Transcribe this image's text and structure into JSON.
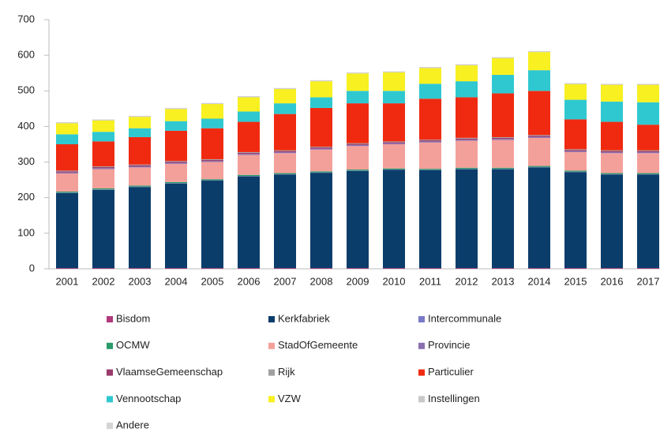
{
  "chart_data": {
    "type": "stacked_bar",
    "categories": [
      "2001",
      "2002",
      "2003",
      "2004",
      "2005",
      "2006",
      "2007",
      "2008",
      "2009",
      "2010",
      "2011",
      "2012",
      "2013",
      "2014",
      "2015",
      "2016",
      "2017"
    ],
    "ylim": [
      0,
      700
    ],
    "yticks": [
      0,
      100,
      200,
      300,
      400,
      500,
      600,
      700
    ],
    "grid": false,
    "series": [
      {
        "name": "Bisdom",
        "color": "#b03a7a",
        "values": [
          2,
          2,
          2,
          2,
          2,
          2,
          2,
          2,
          2,
          2,
          2,
          2,
          2,
          2,
          2,
          2,
          2
        ]
      },
      {
        "name": "Kerkfabriek",
        "color": "#0b3d6b",
        "values": [
          211,
          220,
          228,
          238,
          246,
          258,
          263,
          268,
          273,
          276,
          275,
          278,
          278,
          283,
          270,
          263,
          263
        ]
      },
      {
        "name": "Intercommunale",
        "color": "#7a7ac8",
        "values": [
          1,
          1,
          1,
          1,
          1,
          1,
          1,
          1,
          1,
          1,
          1,
          1,
          1,
          1,
          1,
          1,
          1
        ]
      },
      {
        "name": "OCMW",
        "color": "#2a9a6a",
        "values": [
          3,
          3,
          3,
          3,
          3,
          3,
          3,
          3,
          3,
          3,
          3,
          3,
          3,
          3,
          3,
          3,
          3
        ]
      },
      {
        "name": "StadOfGemeente",
        "color": "#f4a09a",
        "values": [
          51,
          54,
          51,
          51,
          48,
          56,
          56,
          61,
          66,
          68,
          74,
          76,
          78,
          79,
          52,
          56,
          56
        ]
      },
      {
        "name": "Provincie",
        "color": "#8a70b0",
        "values": [
          3,
          3,
          3,
          3,
          3,
          3,
          3,
          3,
          3,
          3,
          3,
          3,
          3,
          3,
          3,
          3,
          3
        ]
      },
      {
        "name": "VlaamseGemeenschap",
        "color": "#9a3a6a",
        "values": [
          3,
          3,
          3,
          3,
          3,
          3,
          3,
          3,
          3,
          3,
          3,
          3,
          3,
          3,
          3,
          3,
          3
        ]
      },
      {
        "name": "Rijk",
        "color": "#a0a0a0",
        "values": [
          2,
          2,
          2,
          2,
          2,
          2,
          2,
          2,
          2,
          2,
          2,
          2,
          2,
          2,
          2,
          2,
          2
        ]
      },
      {
        "name": "Particulier",
        "color": "#f02a10",
        "values": [
          74,
          70,
          77,
          85,
          87,
          85,
          102,
          109,
          112,
          107,
          115,
          114,
          123,
          124,
          84,
          80,
          72
        ]
      },
      {
        "name": "Vennootschap",
        "color": "#30c8d0",
        "values": [
          28,
          27,
          25,
          27,
          27,
          29,
          30,
          30,
          35,
          35,
          42,
          45,
          52,
          58,
          55,
          57,
          63
        ]
      },
      {
        "name": "VZW",
        "color": "#f8f020",
        "values": [
          31,
          32,
          32,
          34,
          41,
          40,
          40,
          45,
          49,
          52,
          44,
          45,
          47,
          51,
          44,
          47,
          49
        ]
      },
      {
        "name": "Instellingen",
        "color": "#c8c8c8",
        "values": [
          2,
          2,
          2,
          2,
          2,
          2,
          2,
          2,
          2,
          2,
          2,
          2,
          2,
          2,
          2,
          2,
          2
        ]
      },
      {
        "name": "Andere",
        "color": "#d4d4d4",
        "values": [
          1,
          1,
          1,
          1,
          1,
          1,
          1,
          1,
          1,
          1,
          1,
          1,
          1,
          1,
          1,
          1,
          1
        ]
      }
    ]
  }
}
